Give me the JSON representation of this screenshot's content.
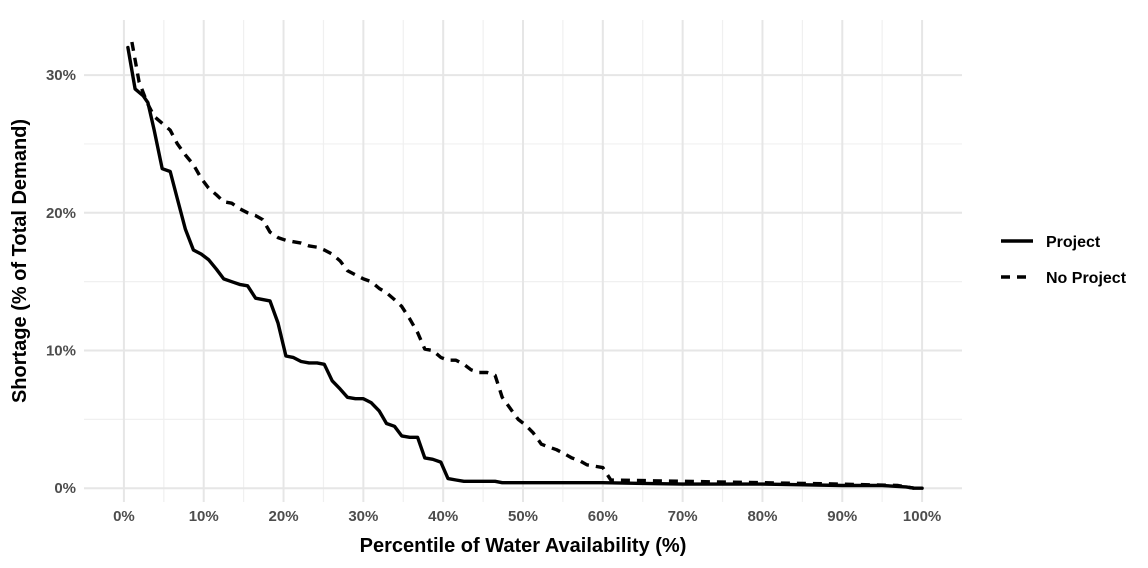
{
  "chart_data": {
    "type": "line",
    "title": "",
    "xlabel": "Percentile of Water Availability (%)",
    "ylabel": "Shortage (% of Total Demand)",
    "xlim": [
      -0.05,
      1.05
    ],
    "ylim": [
      -0.01,
      0.34
    ],
    "x_ticks": [
      0,
      0.1,
      0.2,
      0.3,
      0.4,
      0.5,
      0.6,
      0.7,
      0.8,
      0.9,
      1.0
    ],
    "x_tick_labels": [
      "0%",
      "10%",
      "20%",
      "30%",
      "40%",
      "50%",
      "60%",
      "70%",
      "80%",
      "90%",
      "100%"
    ],
    "y_ticks": [
      0,
      0.1,
      0.2,
      0.3
    ],
    "y_tick_labels": [
      "0%",
      "10%",
      "20%",
      "30%"
    ],
    "grid": true,
    "legend_position": "right",
    "series": [
      {
        "name": "Project",
        "style": "solid",
        "color": "#000000",
        "x": [
          0.005,
          0.014,
          0.024,
          0.03,
          0.038,
          0.048,
          0.058,
          0.067,
          0.077,
          0.087,
          0.097,
          0.106,
          0.116,
          0.125,
          0.135,
          0.145,
          0.155,
          0.165,
          0.174,
          0.183,
          0.193,
          0.203,
          0.212,
          0.222,
          0.232,
          0.242,
          0.251,
          0.261,
          0.271,
          0.28,
          0.29,
          0.3,
          0.31,
          0.32,
          0.329,
          0.339,
          0.348,
          0.358,
          0.368,
          0.377,
          0.387,
          0.397,
          0.406,
          0.416,
          0.426,
          0.435,
          0.445,
          0.455,
          0.465,
          0.474,
          0.484,
          0.494,
          0.55,
          0.6,
          0.7,
          0.8,
          0.9,
          0.95,
          0.98,
          0.99,
          1.0
        ],
        "y": [
          0.32,
          0.29,
          0.285,
          0.28,
          0.26,
          0.232,
          0.23,
          0.21,
          0.188,
          0.173,
          0.17,
          0.166,
          0.159,
          0.152,
          0.15,
          0.148,
          0.147,
          0.138,
          0.137,
          0.136,
          0.12,
          0.096,
          0.095,
          0.092,
          0.091,
          0.091,
          0.09,
          0.078,
          0.072,
          0.066,
          0.065,
          0.065,
          0.062,
          0.056,
          0.047,
          0.045,
          0.038,
          0.037,
          0.037,
          0.022,
          0.021,
          0.019,
          0.007,
          0.006,
          0.005,
          0.005,
          0.005,
          0.005,
          0.005,
          0.004,
          0.004,
          0.004,
          0.004,
          0.004,
          0.003,
          0.003,
          0.002,
          0.002,
          0.001,
          0.0,
          0.0
        ]
      },
      {
        "name": "No Project",
        "style": "dashed",
        "color": "#000000",
        "x": [
          0.01,
          0.019,
          0.029,
          0.038,
          0.048,
          0.058,
          0.067,
          0.077,
          0.087,
          0.097,
          0.106,
          0.116,
          0.125,
          0.135,
          0.145,
          0.155,
          0.165,
          0.174,
          0.183,
          0.193,
          0.203,
          0.212,
          0.222,
          0.232,
          0.242,
          0.251,
          0.261,
          0.271,
          0.28,
          0.29,
          0.3,
          0.31,
          0.32,
          0.329,
          0.339,
          0.348,
          0.358,
          0.368,
          0.377,
          0.387,
          0.397,
          0.406,
          0.416,
          0.426,
          0.435,
          0.445,
          0.455,
          0.465,
          0.474,
          0.484,
          0.494,
          0.503,
          0.513,
          0.523,
          0.532,
          0.542,
          0.552,
          0.561,
          0.571,
          0.58,
          0.59,
          0.6,
          0.61,
          0.7,
          0.8,
          0.9,
          0.97,
          0.99
        ],
        "y": [
          0.324,
          0.295,
          0.28,
          0.27,
          0.265,
          0.26,
          0.25,
          0.242,
          0.235,
          0.225,
          0.218,
          0.213,
          0.208,
          0.207,
          0.203,
          0.2,
          0.198,
          0.195,
          0.186,
          0.182,
          0.18,
          0.179,
          0.178,
          0.176,
          0.175,
          0.173,
          0.17,
          0.165,
          0.158,
          0.155,
          0.152,
          0.15,
          0.145,
          0.142,
          0.137,
          0.132,
          0.123,
          0.113,
          0.101,
          0.1,
          0.095,
          0.093,
          0.093,
          0.09,
          0.086,
          0.084,
          0.084,
          0.082,
          0.066,
          0.058,
          0.05,
          0.046,
          0.04,
          0.032,
          0.03,
          0.028,
          0.025,
          0.022,
          0.02,
          0.017,
          0.016,
          0.015,
          0.006,
          0.005,
          0.004,
          0.003,
          0.002,
          0.0
        ]
      }
    ]
  }
}
